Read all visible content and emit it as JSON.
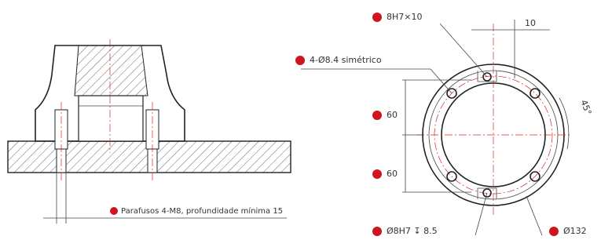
{
  "left_view": {
    "note": "Parafusos 4-M8, profundidade mínima 15"
  },
  "right_view": {
    "dimensions": [
      "8H7×10",
      "10",
      "4-Ø8.4 simétrico",
      "45°",
      "60",
      "60",
      "Ø8H7 ↧ 8.5",
      "Ø132"
    ]
  }
}
